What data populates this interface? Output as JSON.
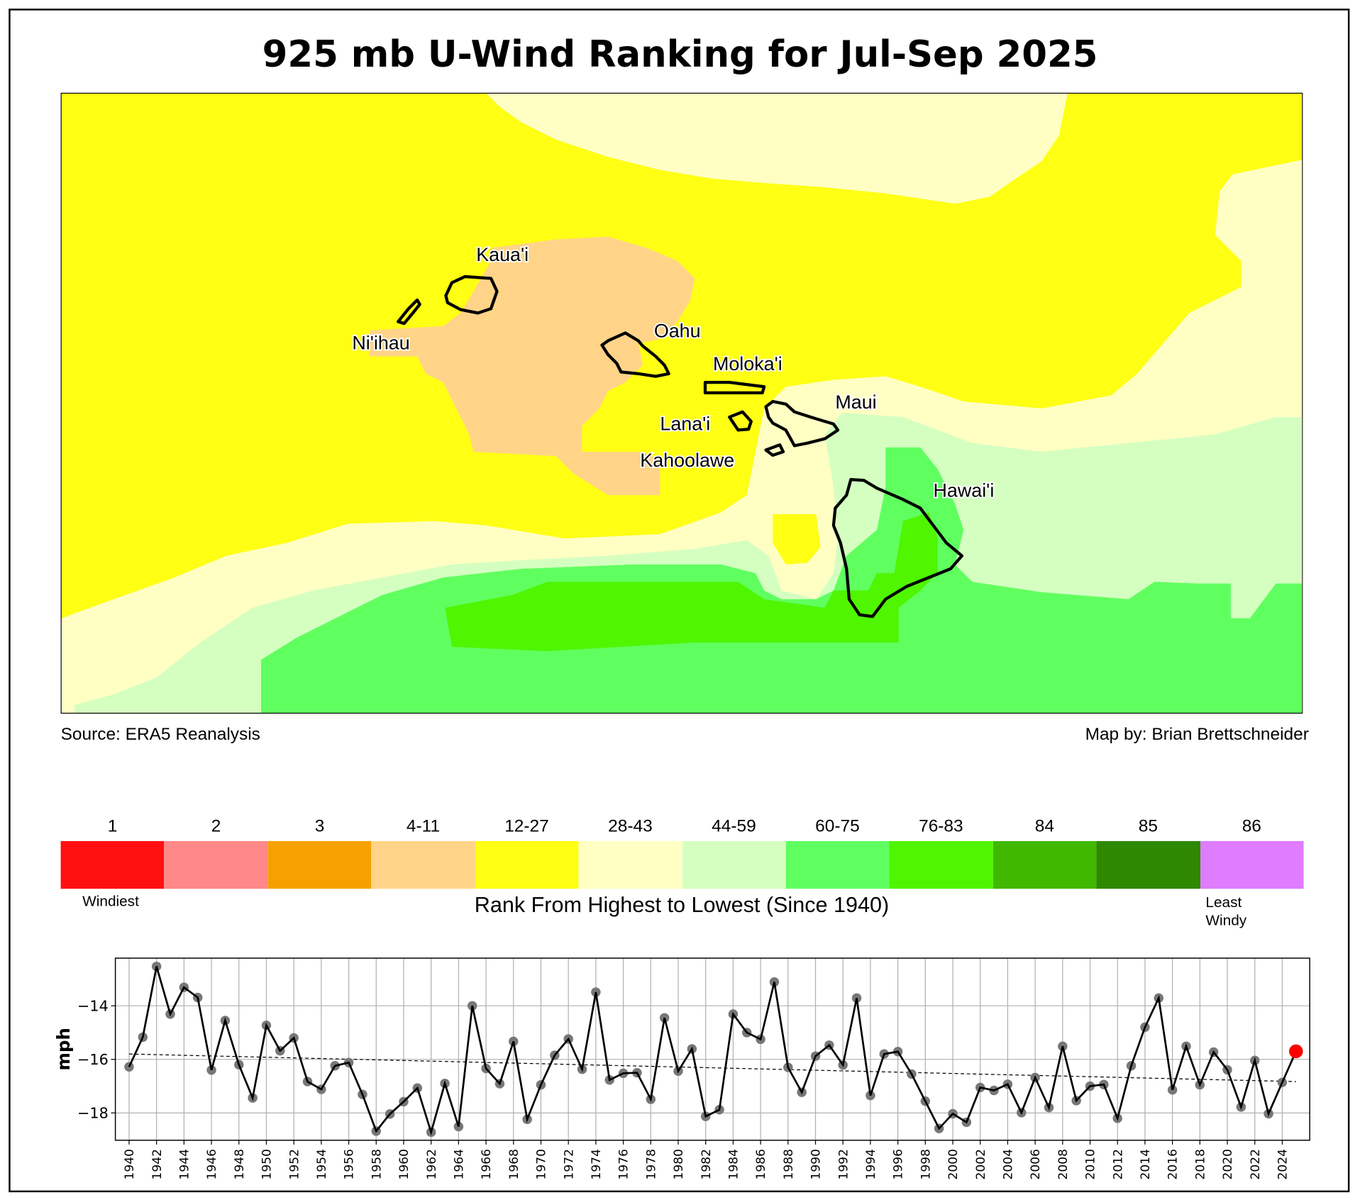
{
  "title": "925 mb U-Wind Ranking for Jul-Sep 2025",
  "source": "Source: ERA5 Reanalysis",
  "credit": "Map by: Brian Brettschneider",
  "map_labels": {
    "kauai": "Kaua'i",
    "niihau": "Ni'ihau",
    "oahu": "Oahu",
    "molokai": "Moloka'i",
    "maui": "Maui",
    "lanai": "Lana'i",
    "kahoolawe": "Kahoolawe",
    "hawaii": "Hawai'i"
  },
  "colorbar": {
    "labels": [
      "1",
      "2",
      "3",
      "4-11",
      "12-27",
      "28-43",
      "44-59",
      "60-75",
      "76-83",
      "84",
      "85",
      "86"
    ],
    "colors": [
      "#ff1010",
      "#ff8888",
      "#f5a200",
      "#ffd488",
      "#ffff14",
      "#ffffc4",
      "#d4ffc0",
      "#60ff60",
      "#50f500",
      "#40b800",
      "#2e8800",
      "#e07cff"
    ],
    "low_label": "Windiest",
    "high_label_1": "Least",
    "high_label_2": "Windy",
    "caption": "Rank From Highest to Lowest (Since 1940)"
  },
  "chart_data": {
    "type": "line",
    "ylabel": "mph",
    "xlim": [
      1939,
      2026
    ],
    "ylim": [
      -19.02,
      -12.22
    ],
    "yticks": [
      -14,
      -16,
      -18
    ],
    "ytick_labels": [
      "−14",
      "−16",
      "−18"
    ],
    "xticks": [
      1940,
      1942,
      1944,
      1946,
      1948,
      1950,
      1952,
      1954,
      1956,
      1958,
      1960,
      1962,
      1964,
      1966,
      1968,
      1970,
      1972,
      1974,
      1976,
      1978,
      1980,
      1982,
      1984,
      1986,
      1988,
      1990,
      1992,
      1994,
      1996,
      1998,
      2000,
      2002,
      2004,
      2006,
      2008,
      2010,
      2012,
      2014,
      2016,
      2018,
      2020,
      2022,
      2024
    ],
    "grid": true,
    "x_start": 1940,
    "values": [
      -16.28,
      -15.17,
      -12.53,
      -14.31,
      -13.31,
      -13.69,
      -16.4,
      -14.55,
      -16.2,
      -17.44,
      -14.73,
      -15.68,
      -15.2,
      -16.83,
      -17.12,
      -16.24,
      -16.12,
      -17.31,
      -18.68,
      -18.04,
      -17.58,
      -17.07,
      -18.72,
      -16.9,
      -18.51,
      -14.0,
      -16.34,
      -16.91,
      -15.33,
      -18.24,
      -16.95,
      -15.85,
      -15.24,
      -16.37,
      -13.49,
      -16.77,
      -16.52,
      -16.5,
      -17.49,
      -14.45,
      -16.44,
      -15.61,
      -18.13,
      -17.88,
      -14.31,
      -15.0,
      -15.25,
      -13.11,
      -16.3,
      -17.23,
      -15.88,
      -15.47,
      -16.21,
      -13.71,
      -17.35,
      -15.8,
      -15.71,
      -16.55,
      -17.56,
      -18.58,
      -18.03,
      -18.35,
      -17.05,
      -17.16,
      -16.93,
      -17.99,
      -16.68,
      -17.8,
      -15.51,
      -17.54,
      -17.0,
      -16.94,
      -18.2,
      -16.24,
      -14.8,
      -13.71,
      -17.14,
      -15.51,
      -16.95,
      -15.73,
      -16.39,
      -17.78,
      -16.04,
      -18.03,
      -16.86,
      -15.7
    ],
    "trend": {
      "start": [
        1940,
        -15.8
      ],
      "end": [
        2025,
        -16.83
      ]
    },
    "highlight_year": 2025,
    "colors": {
      "line": "#000000",
      "marker": "#777777",
      "highlight": "#ff0000",
      "grid": "#b0b0b0"
    }
  }
}
